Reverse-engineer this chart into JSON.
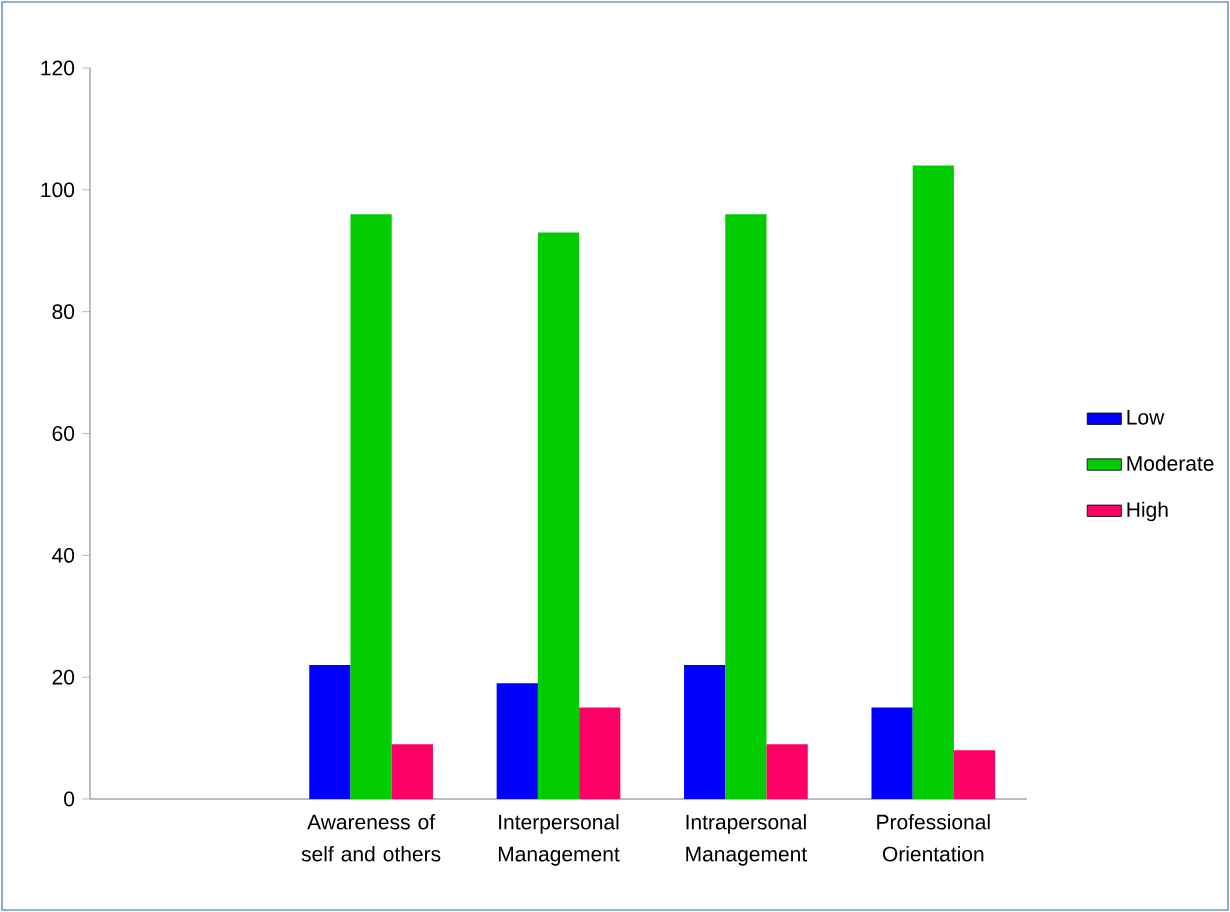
{
  "chart_data": {
    "type": "bar",
    "categories": [
      null,
      "Awareness of self and others",
      "Interpersonal Management",
      "Intrapersonal Management",
      "Professional Orientation"
    ],
    "series": [
      {
        "name": "Low",
        "color": "#0000ff",
        "values": [
          null,
          22,
          19,
          22,
          15
        ]
      },
      {
        "name": "Moderate",
        "color": "#00cc00",
        "values": [
          null,
          96,
          93,
          96,
          104
        ]
      },
      {
        "name": "High",
        "color": "#ff0066",
        "values": [
          null,
          9,
          15,
          9,
          8
        ]
      }
    ],
    "ylim": [
      0,
      120
    ],
    "yticks": [
      0,
      20,
      40,
      60,
      80,
      100,
      120
    ],
    "grid": false,
    "legend": "right"
  }
}
